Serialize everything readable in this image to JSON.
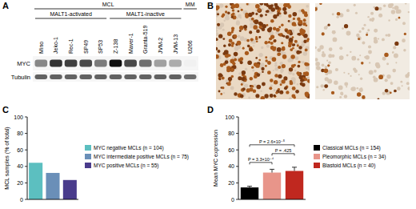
{
  "panels": [
    "A",
    "B",
    "C",
    "D"
  ],
  "blot": {
    "rows": [
      "MYC",
      "Tubulin"
    ],
    "groups": [
      {
        "label": "MCL",
        "subgroups": [
          {
            "label": "MALT1-activated",
            "lanes": [
              {
                "label": "Mino",
                "bands": [
                  0.45,
                  0.6
                ]
              },
              {
                "label": "Jeko-1",
                "bands": [
                  0.8,
                  0.6
                ]
              },
              {
                "label": "Rec-1",
                "bands": [
                  0.75,
                  0.6
                ]
              },
              {
                "label": "SP49",
                "bands": [
                  0.7,
                  0.6
                ]
              },
              {
                "label": "SP53",
                "bands": [
                  0.5,
                  0.6
                ]
              }
            ]
          },
          {
            "label": "MALT1-inactive",
            "lanes": [
              {
                "label": "Z-138",
                "bands": [
                  0.95,
                  0.6
                ]
              },
              {
                "label": "Maver-1",
                "bands": [
                  0.7,
                  0.6
                ]
              },
              {
                "label": "Granta-519",
                "bands": [
                  0.55,
                  0.6
                ]
              },
              {
                "label": "JVM-2",
                "bands": [
                  0.35,
                  0.6
                ]
              },
              {
                "label": "JVM-13",
                "bands": [
                  0.3,
                  0.6
                ]
              }
            ]
          }
        ]
      },
      {
        "label": "MM",
        "subgroups": [
          {
            "lanes": [
              {
                "label": "U266",
                "bands": [
                  0.02,
                  0.55
                ]
              }
            ]
          }
        ]
      }
    ]
  },
  "chart_data": [
    {
      "type": "bar",
      "y_label": "MCL samples (% of total)",
      "categories": [
        "MYC negative MCLs (n = 104)",
        "MYC intermediate positive MCLs (n = 75)",
        "MYC positive MCLs (n = 55)"
      ],
      "values": [
        44.4,
        32.1,
        23.5
      ],
      "colors": [
        "#5cbfc0",
        "#6a8fb8",
        "#4a3c8c"
      ],
      "ylim": [
        0,
        100
      ],
      "yticks": [
        0,
        20,
        40,
        60,
        80,
        100
      ],
      "legend": "right",
      "tick_labels": "y"
    },
    {
      "type": "bar",
      "y_label": "Mean MYC expression",
      "categories": [
        "Classical MCLs (n = 154)",
        "Pleomorphic MCLs (n = 34)",
        "Blastoid MCLs (n = 40)"
      ],
      "values": [
        14.5,
        32.5,
        34.5
      ],
      "errors": [
        1.5,
        4,
        4.5
      ],
      "colors": [
        "#000000",
        "#e8958a",
        "#c0281f"
      ],
      "ylim": [
        0,
        100
      ],
      "yticks": [
        0,
        20,
        40,
        60,
        80,
        100
      ],
      "legend": "right",
      "tick_labels": "y",
      "annotations": [
        {
          "text": "P = 2.6×10⁻⁵",
          "categories": [
            "Classical MCLs (n = 154)",
            "Blastoid MCLs (n = 40)"
          ]
        },
        {
          "text": "P = 3.3×10⁻⁴",
          "categories": [
            "Classical MCLs (n = 154)",
            "Pleomorphic MCLs (n = 34)"
          ]
        },
        {
          "text": "P = .425",
          "categories": [
            "Pleomorphic MCLs (n = 34)",
            "Blastoid MCLs (n = 40)"
          ]
        }
      ]
    }
  ]
}
